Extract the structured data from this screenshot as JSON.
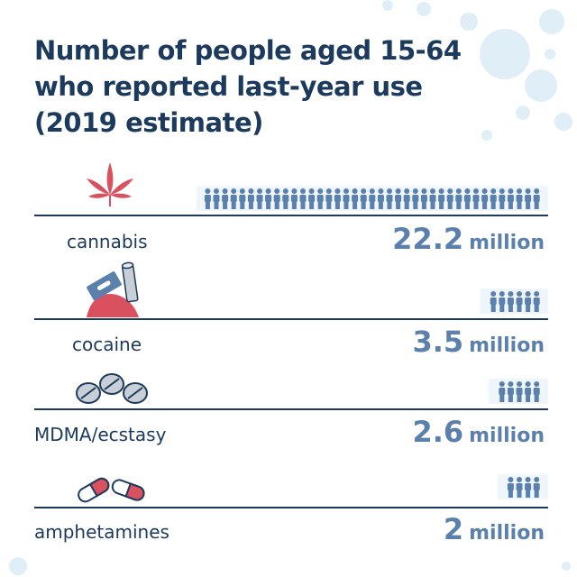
{
  "title_lines": [
    "Number of people aged 15-64",
    "who reported last-year use",
    "(2019 estimate)"
  ],
  "colors": {
    "navy": "#1b3a5c",
    "accent": "#5b80ac",
    "cannabis_red": "#d9505f",
    "bubble": "#dfeef7"
  },
  "icons": [
    "cannabis-leaf-icon",
    "cocaine-razor-pile-icon",
    "pills-icon",
    "capsules-icon"
  ],
  "chart_data": {
    "type": "bar",
    "title": "Number of people aged 15-64 who reported last-year use (2019 estimate)",
    "categories": [
      "cannabis",
      "cocaine",
      "MDMA/ecstasy",
      "amphetamines"
    ],
    "values": [
      22.2,
      3.5,
      2.6,
      2
    ],
    "unit": "million",
    "value_labels": [
      {
        "num": "22.2",
        "unit": "million"
      },
      {
        "num": "3.5",
        "unit": "million"
      },
      {
        "num": "2.6",
        "unit": "million"
      },
      {
        "num": "2",
        "unit": "million"
      }
    ],
    "xlabel": "",
    "ylabel": "",
    "legend": "none",
    "grid": false
  }
}
